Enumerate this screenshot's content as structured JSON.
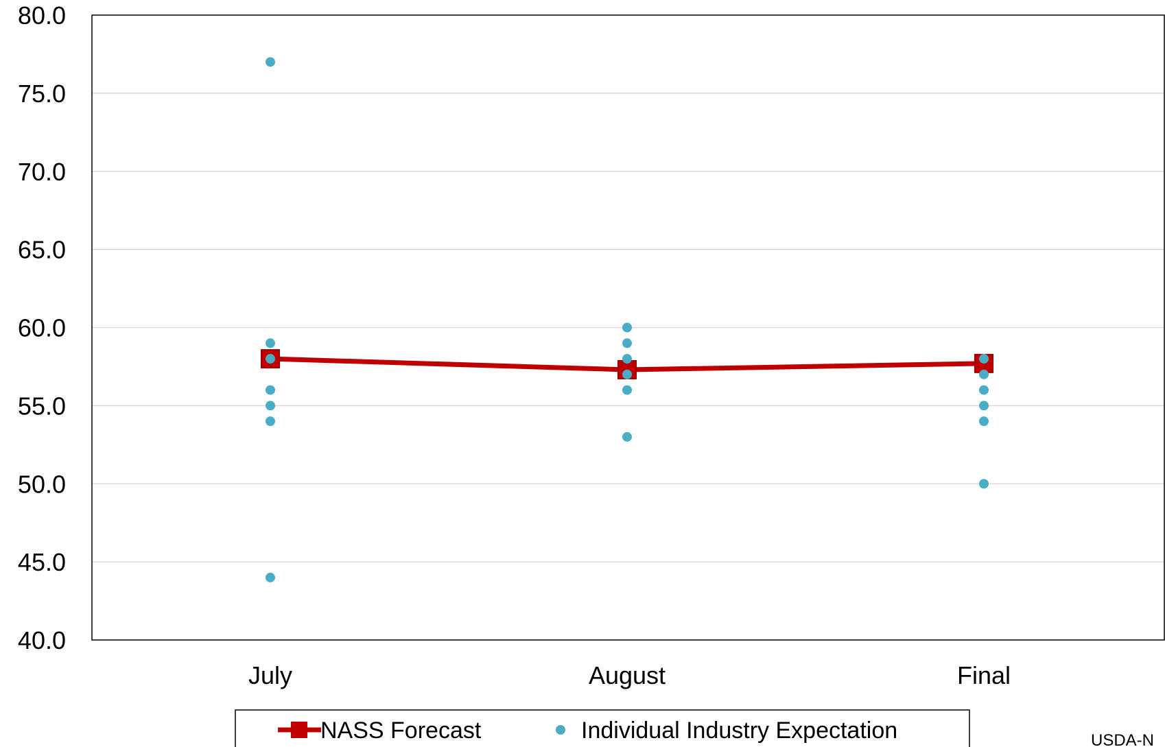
{
  "chart_data": {
    "type": "line",
    "categories": [
      "July",
      "August",
      "Final"
    ],
    "ylim": [
      40.0,
      80.0
    ],
    "yticks": [
      "40.0",
      "45.0",
      "50.0",
      "55.0",
      "60.0",
      "65.0",
      "70.0",
      "75.0",
      "80.0"
    ],
    "grid": true,
    "legend_position": "bottom",
    "series": [
      {
        "name": "NASS Forecast",
        "kind": "line-marker",
        "marker": "square",
        "color": "#C00000",
        "values": [
          58.0,
          57.3,
          57.7
        ]
      },
      {
        "name": "Individual Industry Expectation",
        "kind": "scatter",
        "marker": "circle",
        "color": "#4BACC6",
        "points": [
          {
            "category": "July",
            "values": [
              77,
              59,
              58,
              56,
              55,
              54,
              44
            ]
          },
          {
            "category": "August",
            "values": [
              60,
              59,
              58,
              57,
              56,
              53
            ]
          },
          {
            "category": "Final",
            "values": [
              58,
              57,
              56,
              55,
              54,
              50
            ]
          }
        ]
      }
    ]
  },
  "legend": {
    "nass_label": "NASS Forecast",
    "industry_label": "Individual Industry Expectation"
  },
  "source": "USDA-N"
}
